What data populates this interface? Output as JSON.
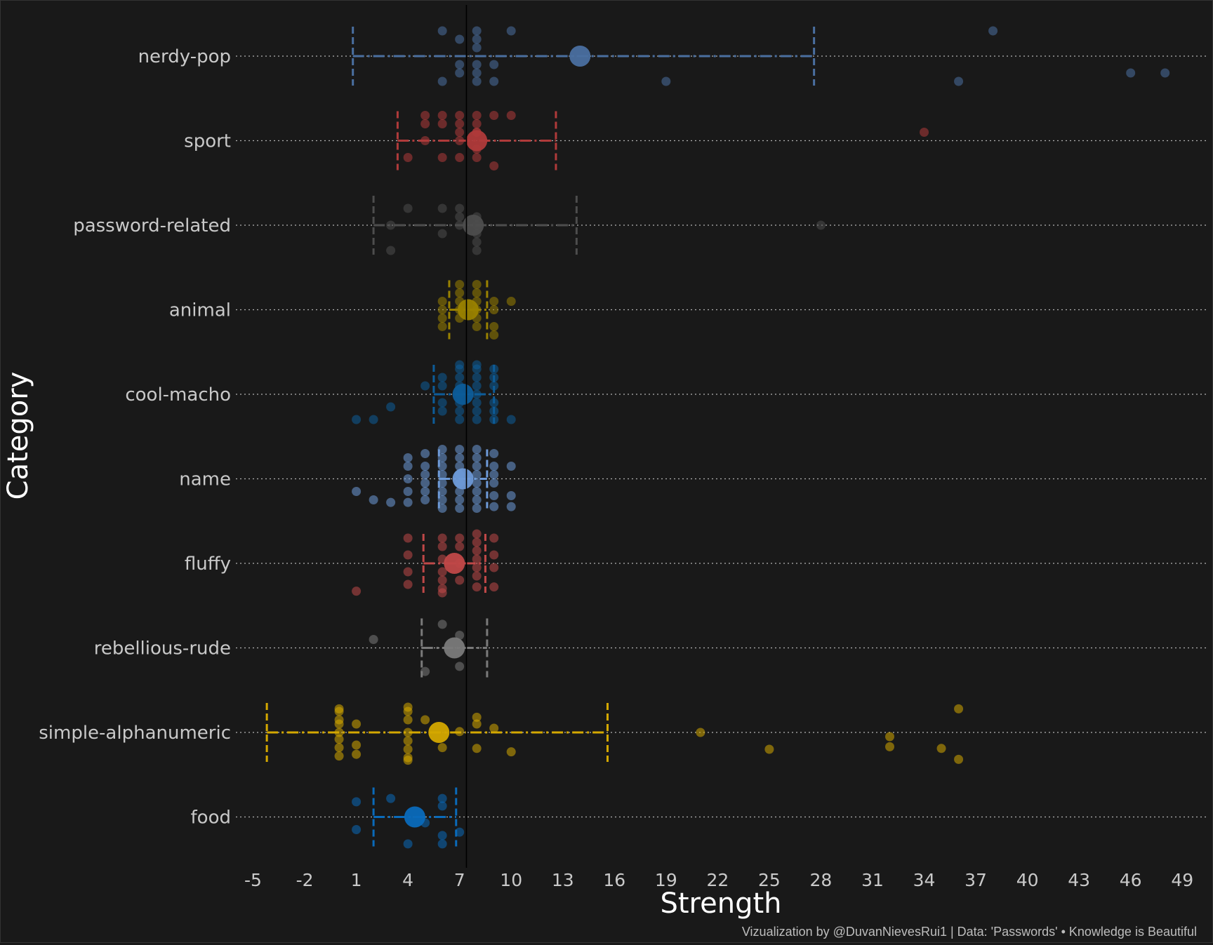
{
  "chart_data": {
    "type": "scatter",
    "xlabel": "Strength",
    "ylabel": "Category",
    "credit": "Vizualization by @DuvanNievesRui1 | Data: 'Passwords' • Knowledge is Beautiful",
    "xlim": [
      -6,
      50.5
    ],
    "xticks": [
      -5,
      -2,
      1,
      4,
      7,
      10,
      13,
      16,
      19,
      22,
      25,
      28,
      31,
      34,
      37,
      40,
      43,
      46,
      49
    ],
    "reference_line": 7.4,
    "categories": [
      "nerdy-pop",
      "sport",
      "password-related",
      "animal",
      "cool-macho",
      "name",
      "fluffy",
      "rebellious-rude",
      "simple-alphanumeric",
      "food"
    ],
    "series": [
      {
        "name": "nerdy-pop",
        "color": "#4a6fa0",
        "mean": 14.0,
        "range": [
          0.8,
          27.6
        ],
        "points": [
          [
            6,
            0.3
          ],
          [
            7,
            0.2
          ],
          [
            7,
            -0.2
          ],
          [
            8,
            0.3
          ],
          [
            8,
            0.2
          ],
          [
            8,
            0.1
          ],
          [
            8,
            -0.1
          ],
          [
            8,
            -0.2
          ],
          [
            8,
            -0.3
          ],
          [
            9,
            -0.1
          ],
          [
            9,
            -0.3
          ],
          [
            10,
            0.3
          ],
          [
            6,
            -0.3
          ],
          [
            19,
            -0.3
          ],
          [
            36,
            -0.3
          ],
          [
            38,
            0.3
          ],
          [
            46,
            -0.2
          ],
          [
            48,
            -0.2
          ],
          [
            7,
            -0.1
          ]
        ]
      },
      {
        "name": "sport",
        "color": "#b03a3a",
        "mean": 8.0,
        "range": [
          3.4,
          12.6
        ],
        "points": [
          [
            4,
            -0.2
          ],
          [
            5,
            0.3
          ],
          [
            5,
            0.2
          ],
          [
            5,
            0
          ],
          [
            6,
            0.3
          ],
          [
            6,
            0.2
          ],
          [
            6,
            -0.2
          ],
          [
            7,
            0.3
          ],
          [
            7,
            0.2
          ],
          [
            7,
            0.1
          ],
          [
            7,
            0
          ],
          [
            7,
            -0.2
          ],
          [
            8,
            0.3
          ],
          [
            8,
            0.2
          ],
          [
            8,
            0.1
          ],
          [
            8,
            0.1
          ],
          [
            8,
            -0.1
          ],
          [
            8,
            -0.2
          ],
          [
            9,
            0.3
          ],
          [
            9,
            -0.3
          ],
          [
            10,
            0.3
          ],
          [
            34,
            0.1
          ]
        ]
      },
      {
        "name": "password-related",
        "color": "#4d4d4d",
        "mean": 7.8,
        "range": [
          2.0,
          13.8
        ],
        "points": [
          [
            3,
            0
          ],
          [
            3,
            -0.3
          ],
          [
            4,
            0.2
          ],
          [
            6,
            0.2
          ],
          [
            6,
            -0.1
          ],
          [
            7,
            0.2
          ],
          [
            7,
            0.1
          ],
          [
            7,
            0
          ],
          [
            8,
            0.1
          ],
          [
            8,
            0
          ],
          [
            8,
            -0.1
          ],
          [
            8,
            -0.2
          ],
          [
            8,
            -0.3
          ],
          [
            28,
            0
          ]
        ]
      },
      {
        "name": "animal",
        "color": "#9a8200",
        "mean": 7.5,
        "range": [
          6.4,
          8.6
        ],
        "points": [
          [
            6,
            0.1
          ],
          [
            6,
            0
          ],
          [
            6,
            -0.1
          ],
          [
            6,
            -0.2
          ],
          [
            7,
            0.3
          ],
          [
            7,
            0.2
          ],
          [
            7,
            0.1
          ],
          [
            7,
            0
          ],
          [
            7,
            -0.1
          ],
          [
            8,
            0.3
          ],
          [
            8,
            0.2
          ],
          [
            8,
            0.1
          ],
          [
            8,
            0
          ],
          [
            8,
            -0.1
          ],
          [
            8,
            -0.2
          ],
          [
            9,
            0.1
          ],
          [
            9,
            0
          ],
          [
            9,
            -0.2
          ],
          [
            9,
            -0.3
          ],
          [
            10,
            0.1
          ]
        ]
      },
      {
        "name": "cool-macho",
        "color": "#0d5c99",
        "mean": 7.2,
        "range": [
          5.5,
          9.0
        ],
        "points": [
          [
            1,
            -0.3
          ],
          [
            2,
            -0.3
          ],
          [
            3,
            -0.15
          ],
          [
            5,
            0.1
          ],
          [
            6,
            0.2
          ],
          [
            6,
            0.1
          ],
          [
            6,
            -0.1
          ],
          [
            6,
            -0.2
          ],
          [
            7,
            0.3
          ],
          [
            7,
            0.2
          ],
          [
            7,
            0.1
          ],
          [
            7,
            0
          ],
          [
            7,
            -0.1
          ],
          [
            7,
            -0.2
          ],
          [
            7,
            -0.3
          ],
          [
            8,
            0.3
          ],
          [
            8,
            0.2
          ],
          [
            8,
            0.1
          ],
          [
            8,
            0
          ],
          [
            8,
            -0.1
          ],
          [
            8,
            -0.2
          ],
          [
            8,
            -0.3
          ],
          [
            9,
            0.3
          ],
          [
            9,
            0.2
          ],
          [
            9,
            0.1
          ],
          [
            9,
            -0.1
          ],
          [
            9,
            -0.2
          ],
          [
            9,
            -0.3
          ],
          [
            10,
            -0.3
          ],
          [
            8,
            0.35
          ],
          [
            7,
            0.35
          ]
        ]
      },
      {
        "name": "name",
        "color": "#6e9ad8",
        "mean": 7.2,
        "range": [
          5.8,
          8.6
        ],
        "points": [
          [
            1,
            -0.15
          ],
          [
            2,
            -0.25
          ],
          [
            3,
            -0.28
          ],
          [
            4,
            0.25
          ],
          [
            4,
            0.15
          ],
          [
            4,
            0
          ],
          [
            4,
            -0.15
          ],
          [
            4,
            -0.28
          ],
          [
            5,
            0.3
          ],
          [
            5,
            0.15
          ],
          [
            5,
            0.05
          ],
          [
            5,
            -0.05
          ],
          [
            5,
            -0.15
          ],
          [
            5,
            -0.25
          ],
          [
            6,
            0.35
          ],
          [
            6,
            0.25
          ],
          [
            6,
            0.15
          ],
          [
            6,
            0.05
          ],
          [
            6,
            -0.05
          ],
          [
            6,
            -0.15
          ],
          [
            6,
            -0.25
          ],
          [
            6,
            -0.35
          ],
          [
            7,
            0.35
          ],
          [
            7,
            0.25
          ],
          [
            7,
            0.15
          ],
          [
            7,
            0.05
          ],
          [
            7,
            -0.05
          ],
          [
            7,
            -0.15
          ],
          [
            7,
            -0.25
          ],
          [
            7,
            -0.35
          ],
          [
            8,
            0.35
          ],
          [
            8,
            0.25
          ],
          [
            8,
            0.15
          ],
          [
            8,
            0.05
          ],
          [
            8,
            -0.05
          ],
          [
            8,
            -0.15
          ],
          [
            8,
            -0.25
          ],
          [
            8,
            -0.35
          ],
          [
            9,
            0.3
          ],
          [
            9,
            0.15
          ],
          [
            9,
            0.05
          ],
          [
            9,
            -0.05
          ],
          [
            9,
            -0.2
          ],
          [
            9,
            -0.33
          ],
          [
            10,
            0.15
          ],
          [
            10,
            -0.2
          ],
          [
            10,
            -0.33
          ]
        ]
      },
      {
        "name": "fluffy",
        "color": "#c04848",
        "mean": 6.7,
        "range": [
          4.9,
          8.5
        ],
        "points": [
          [
            1,
            -0.33
          ],
          [
            4,
            0.3
          ],
          [
            4,
            0.1
          ],
          [
            4,
            -0.1
          ],
          [
            4,
            -0.25
          ],
          [
            6,
            0.3
          ],
          [
            6,
            0.2
          ],
          [
            6,
            0.05
          ],
          [
            6,
            -0.1
          ],
          [
            6,
            -0.2
          ],
          [
            6,
            -0.3
          ],
          [
            6,
            -0.35
          ],
          [
            7,
            0.3
          ],
          [
            7,
            0.2
          ],
          [
            7,
            0
          ],
          [
            7,
            -0.2
          ],
          [
            8,
            0.35
          ],
          [
            8,
            0.25
          ],
          [
            8,
            0.15
          ],
          [
            8,
            0.05
          ],
          [
            8,
            -0.05
          ],
          [
            8,
            -0.15
          ],
          [
            8,
            -0.28
          ],
          [
            9,
            0.3
          ],
          [
            9,
            0.1
          ],
          [
            9,
            -0.05
          ],
          [
            9,
            -0.28
          ]
        ]
      },
      {
        "name": "rebellious-rude",
        "color": "#7a7a7a",
        "mean": 6.7,
        "range": [
          4.8,
          8.6
        ],
        "points": [
          [
            2,
            0.1
          ],
          [
            5,
            -0.28
          ],
          [
            6,
            0.28
          ],
          [
            7,
            0.15
          ],
          [
            7,
            -0.22
          ]
        ]
      },
      {
        "name": "simple-alphanumeric",
        "color": "#d4a800",
        "mean": 5.8,
        "range": [
          -4.2,
          15.6
        ],
        "points": [
          [
            0,
            0.28
          ],
          [
            0,
            0.25
          ],
          [
            0,
            0.15
          ],
          [
            0,
            0.1
          ],
          [
            0,
            0
          ],
          [
            0,
            -0.08
          ],
          [
            0,
            -0.18
          ],
          [
            0,
            -0.28
          ],
          [
            1,
            0.1
          ],
          [
            1,
            -0.15
          ],
          [
            1,
            -0.26
          ],
          [
            4,
            0.3
          ],
          [
            4,
            0.25
          ],
          [
            4,
            0.15
          ],
          [
            4,
            0
          ],
          [
            4,
            -0.1
          ],
          [
            4,
            -0.2
          ],
          [
            4,
            -0.3
          ],
          [
            4,
            -0.33
          ],
          [
            5,
            0.15
          ],
          [
            6,
            -0.18
          ],
          [
            7,
            0.01
          ],
          [
            8,
            0.18
          ],
          [
            8,
            0.1
          ],
          [
            8,
            -0.19
          ],
          [
            9,
            0.05
          ],
          [
            10,
            -0.23
          ],
          [
            21,
            0
          ],
          [
            25,
            -0.2
          ],
          [
            32,
            -0.05
          ],
          [
            32,
            -0.17
          ],
          [
            35,
            -0.19
          ],
          [
            36,
            0.28
          ],
          [
            36,
            -0.32
          ]
        ]
      },
      {
        "name": "food",
        "color": "#0a6aba",
        "mean": 4.4,
        "range": [
          2.0,
          6.8
        ],
        "points": [
          [
            1,
            0.18
          ],
          [
            1,
            -0.15
          ],
          [
            3,
            0.22
          ],
          [
            4,
            -0.32
          ],
          [
            5,
            -0.07
          ],
          [
            6,
            0.22
          ],
          [
            6,
            0.13
          ],
          [
            6,
            -0.22
          ],
          [
            6,
            -0.32
          ],
          [
            7,
            -0.18
          ]
        ]
      }
    ]
  }
}
